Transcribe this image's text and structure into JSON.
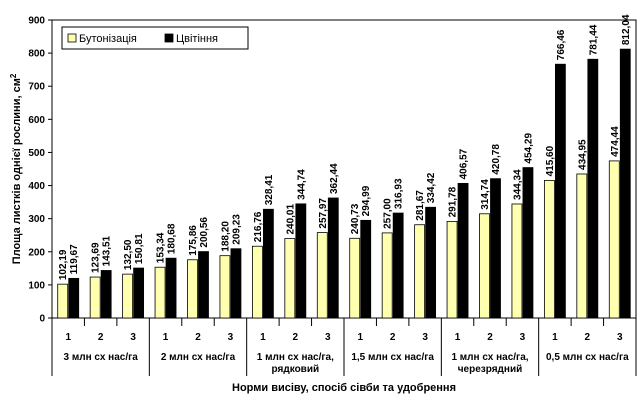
{
  "chart_data": {
    "type": "bar",
    "xlabel": "Норми висіву, спосіб сівби та удобрення",
    "ylabel": "Площа листків однієї рослини, см",
    "ylabel_sup": "2",
    "ylim": [
      0,
      900
    ],
    "yticks": [
      0,
      100,
      200,
      300,
      400,
      500,
      600,
      700,
      800,
      900
    ],
    "grid": false,
    "legend_position": "top-left",
    "groups": [
      {
        "label": [
          "3 млн сх нас/га"
        ],
        "subcats": [
          "1",
          "2",
          "3"
        ]
      },
      {
        "label": [
          "2 млн сх нас/га"
        ],
        "subcats": [
          "1",
          "2",
          "3"
        ]
      },
      {
        "label": [
          "1 млн сх нас/га,",
          "рядковий"
        ],
        "subcats": [
          "1",
          "2",
          "3"
        ]
      },
      {
        "label": [
          "1,5 млн сх нас/га"
        ],
        "subcats": [
          "1",
          "2",
          "3"
        ]
      },
      {
        "label": [
          "1 млн сх нас/га,",
          "черезрядний"
        ],
        "subcats": [
          "1",
          "2",
          "3"
        ]
      },
      {
        "label": [
          "0,5 млн сх нас/га"
        ],
        "subcats": [
          "1",
          "2",
          "3"
        ]
      }
    ],
    "series": [
      {
        "name": "Бутонізація",
        "color": "#ffffb0",
        "values": [
          102.19,
          123.69,
          132.5,
          153.34,
          175.86,
          188.2,
          216.76,
          240.01,
          257.97,
          240.73,
          257.0,
          281.67,
          291.78,
          314.74,
          344.34,
          415.6,
          434.95,
          474.44
        ],
        "labels": [
          "102,19",
          "123,69",
          "132,50",
          "153,34",
          "175,86",
          "188,20",
          "216,76",
          "240,01",
          "257,97",
          "240,73",
          "257,00",
          "281,67",
          "291,78",
          "314,74",
          "344,34",
          "415,60",
          "434,95",
          "474,44"
        ]
      },
      {
        "name": "Цвітіння",
        "color": "#000000",
        "values": [
          119.67,
          143.51,
          150.81,
          180.68,
          200.56,
          209.23,
          328.41,
          344.74,
          362.44,
          294.99,
          316.93,
          334.42,
          406.57,
          420.78,
          454.29,
          766.46,
          781.44,
          812.04
        ],
        "labels": [
          "119,67",
          "143,51",
          "150,81",
          "180,68",
          "200,56",
          "209,23",
          "328,41",
          "344,74",
          "362,44",
          "294,99",
          "316,93",
          "334,42",
          "406,57",
          "420,78",
          "454,29",
          "766,46",
          "781,44",
          "812,04"
        ]
      }
    ]
  }
}
